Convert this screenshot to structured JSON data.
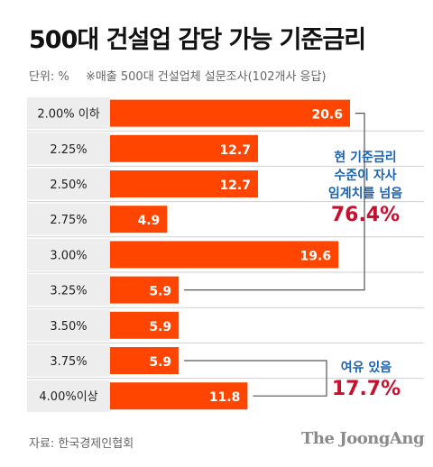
{
  "header": {
    "title": "500대 건설업 감당 가능 기준금리",
    "unit": "단위: %",
    "note": "※매출 500대 건설업체 설문조사(102개사 응답)"
  },
  "chart_data": {
    "type": "bar",
    "orientation": "horizontal",
    "categories": [
      "2.00% 이하",
      "2.25%",
      "2.50%",
      "2.75%",
      "3.00%",
      "3.25%",
      "3.50%",
      "3.75%",
      "4.00%이상"
    ],
    "values": [
      20.6,
      12.7,
      12.7,
      4.9,
      19.6,
      5.9,
      5.9,
      5.9,
      11.8
    ],
    "value_labels": [
      "20.6",
      "12.7",
      "12.7",
      "4.9",
      "19.6",
      "5.9",
      "5.9",
      "5.9",
      "11.8"
    ],
    "xlim": [
      0,
      20.6
    ],
    "bar_color": "#ff4500",
    "label_color": "#ffffff",
    "grid": false,
    "annotations": [
      {
        "lines": [
          "현 기준금리",
          "수준이 자사",
          "임계치를 넘음"
        ],
        "value": "76.4%",
        "range": [
          0,
          5
        ]
      },
      {
        "lines": [
          "여유 있음"
        ],
        "value": "17.7%",
        "range": [
          7,
          8
        ]
      }
    ]
  },
  "colors": {
    "accent_blue": "#1c63b0",
    "accent_red": "#c8102e",
    "bracket": "#555555"
  },
  "footer": {
    "source": "자료: 한국경제인협회",
    "brand": "The JoongAng"
  }
}
